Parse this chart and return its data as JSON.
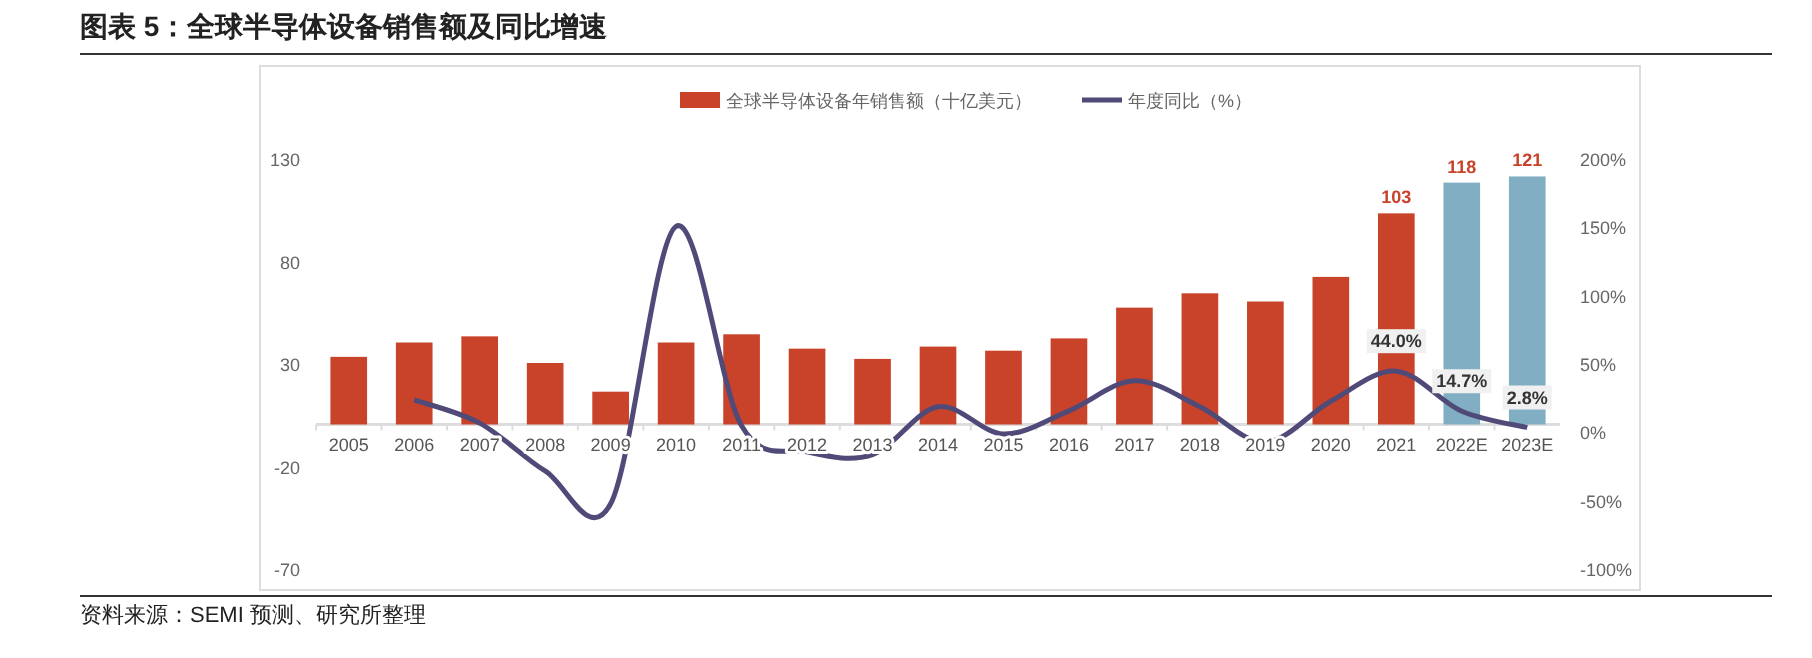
{
  "chart_data": {
    "type": "bar",
    "title": "图表 5：全球半导体设备销售额及同比增速",
    "categories": [
      "2005",
      "2006",
      "2007",
      "2008",
      "2009",
      "2010",
      "2011",
      "2012",
      "2013",
      "2014",
      "2015",
      "2016",
      "2017",
      "2018",
      "2019",
      "2020",
      "2021",
      "2022E",
      "2023E"
    ],
    "series": [
      {
        "name": "全球半导体设备年销售额（十亿美元）",
        "color": "#c8432a",
        "colors": [
          "#c8432a",
          "#c8432a",
          "#c8432a",
          "#c8432a",
          "#c8432a",
          "#c8432a",
          "#c8432a",
          "#c8432a",
          "#c8432a",
          "#c8432a",
          "#c8432a",
          "#c8432a",
          "#c8432a",
          "#c8432a",
          "#c8432a",
          "#c8432a",
          "#c8432a",
          "#82aec4",
          "#82aec4"
        ],
        "values": [
          33,
          40,
          43,
          30,
          16,
          40,
          44,
          37,
          32,
          38,
          36,
          42,
          57,
          64,
          60,
          72,
          103,
          118,
          121
        ],
        "value_labels": [
          null,
          null,
          null,
          null,
          null,
          null,
          null,
          null,
          null,
          null,
          null,
          null,
          null,
          null,
          null,
          null,
          "103",
          "118",
          "121"
        ]
      },
      {
        "name": "年度同比（%）",
        "type": "line",
        "axis": "y2",
        "color": "#4f4a78",
        "values": [
          null,
          23,
          6,
          -29,
          -53,
          150,
          4,
          -15,
          -17,
          18,
          -2,
          15,
          37,
          18,
          -8,
          22,
          44.0,
          14.7,
          2.8
        ],
        "value_labels": [
          null,
          null,
          null,
          null,
          null,
          null,
          null,
          null,
          null,
          null,
          null,
          null,
          null,
          null,
          null,
          null,
          "44.0%",
          "14.7%",
          "2.8%"
        ]
      }
    ],
    "ylim": [
      -70,
      130
    ],
    "yticks": [
      -70,
      -20,
      30,
      80,
      130
    ],
    "y2lim": [
      -100,
      200
    ],
    "y2ticks": [
      {
        "value": -100,
        "label": "-100%"
      },
      {
        "value": -50,
        "label": "-50%"
      },
      {
        "value": 0,
        "label": "0%"
      },
      {
        "value": 50,
        "label": "50%"
      },
      {
        "value": 100,
        "label": "100%"
      },
      {
        "value": 150,
        "label": "150%"
      },
      {
        "value": 200,
        "label": "200%"
      }
    ],
    "legend": "top",
    "grid": false,
    "annotations": [
      "资料来源：SEMI 预测、研究所整理"
    ]
  }
}
